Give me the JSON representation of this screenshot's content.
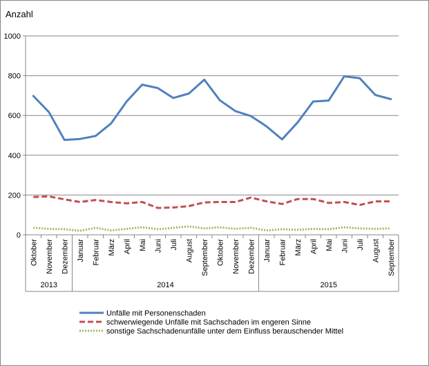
{
  "chart_data": {
    "type": "line",
    "ylabel": "Anzahl",
    "ylim": [
      0,
      1000
    ],
    "yticks": [
      0,
      200,
      400,
      600,
      800,
      1000
    ],
    "grid": "horizontal",
    "legend_position": "bottom",
    "categories": [
      "Oktober",
      "November",
      "Dezember",
      "Januar",
      "Februar",
      "März",
      "April",
      "Mai",
      "Juni",
      "Juli",
      "August",
      "September",
      "Oktober",
      "November",
      "Dezember",
      "Januar",
      "Februar",
      "März",
      "April",
      "Mai",
      "Juni",
      "Juli",
      "August",
      "September"
    ],
    "year_groups": [
      {
        "label": "2013",
        "count": 3
      },
      {
        "label": "2014",
        "count": 12
      },
      {
        "label": "2015",
        "count": 9
      }
    ],
    "series": [
      {
        "name": "Unfälle mit Personenschaden",
        "color": "#4f81bd",
        "style": "solid",
        "values": [
          698,
          617,
          477,
          482,
          497,
          560,
          670,
          755,
          738,
          688,
          710,
          780,
          676,
          622,
          597,
          545,
          480,
          565,
          670,
          675,
          797,
          787,
          703,
          682
        ]
      },
      {
        "name": "schwerwiegende Unfälle mit Sachschaden im engeren Sinne",
        "color": "#c0504d",
        "style": "dashed",
        "values": [
          190,
          193,
          178,
          165,
          175,
          165,
          158,
          165,
          135,
          137,
          144,
          163,
          165,
          165,
          187,
          168,
          155,
          180,
          180,
          160,
          165,
          150,
          168,
          168
        ]
      },
      {
        "name": "sonstige Sachschadenunfälle unter dem Einfluss berauschender Mittel",
        "color": "#9bbb59",
        "style": "dotted",
        "values": [
          35,
          30,
          28,
          20,
          35,
          22,
          30,
          38,
          28,
          35,
          42,
          32,
          38,
          30,
          35,
          22,
          28,
          25,
          30,
          28,
          38,
          32,
          30,
          32
        ]
      }
    ]
  }
}
